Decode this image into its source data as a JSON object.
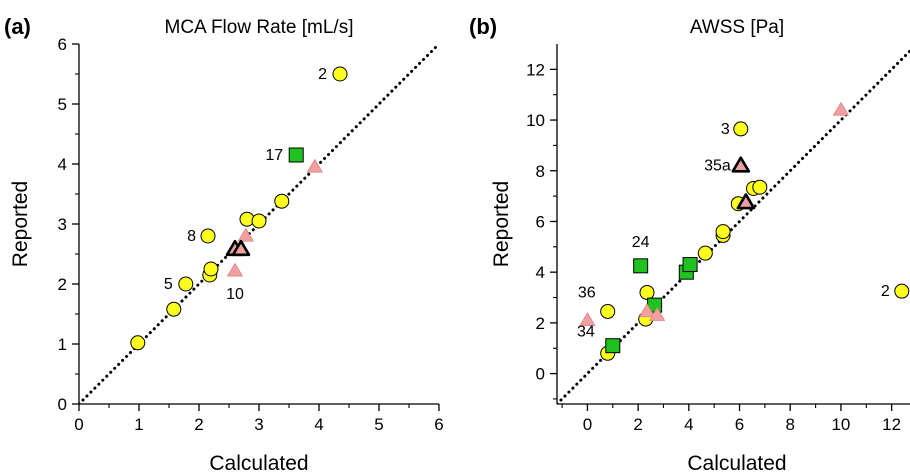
{
  "colors": {
    "circle_fill": "#ffff1e",
    "square_fill": "#1fc21f",
    "triangle_fill": "#f0a0a0",
    "outline": "#000000",
    "identity_line": "#000000"
  },
  "chart_data": [
    {
      "type": "scatter",
      "panel_label": "(a)",
      "title": "MCA Flow Rate [mL/s]",
      "xlabel": "Calculated",
      "ylabel": "Reported",
      "xlim": [
        0,
        6
      ],
      "ylim": [
        0,
        6
      ],
      "xticks": [
        0,
        1,
        2,
        3,
        4,
        5,
        6
      ],
      "yticks": [
        0,
        1,
        2,
        3,
        4,
        5,
        6
      ],
      "identity_line": true,
      "grid": false,
      "points": [
        {
          "x": 0.98,
          "y": 1.02,
          "marker": "circle"
        },
        {
          "x": 1.58,
          "y": 1.58,
          "marker": "circle"
        },
        {
          "x": 1.78,
          "y": 2.0,
          "marker": "circle",
          "label": "5"
        },
        {
          "x": 2.18,
          "y": 2.15,
          "marker": "circle"
        },
        {
          "x": 2.2,
          "y": 2.25,
          "marker": "circle"
        },
        {
          "x": 2.15,
          "y": 2.8,
          "marker": "circle",
          "label": "8"
        },
        {
          "x": 2.8,
          "y": 3.08,
          "marker": "circle"
        },
        {
          "x": 3.0,
          "y": 3.05,
          "marker": "circle"
        },
        {
          "x": 3.38,
          "y": 3.38,
          "marker": "circle"
        },
        {
          "x": 4.35,
          "y": 5.5,
          "marker": "circle",
          "label": "2"
        },
        {
          "x": 3.62,
          "y": 4.15,
          "marker": "square",
          "label": "17"
        },
        {
          "x": 2.6,
          "y": 2.22,
          "marker": "triangle",
          "label": "10"
        },
        {
          "x": 2.78,
          "y": 2.8,
          "marker": "triangle"
        },
        {
          "x": 3.93,
          "y": 3.95,
          "marker": "triangle"
        },
        {
          "x": 2.6,
          "y": 2.58,
          "marker": "triangle",
          "bold": true
        },
        {
          "x": 2.7,
          "y": 2.58,
          "marker": "triangle",
          "bold": true
        }
      ]
    },
    {
      "type": "scatter",
      "panel_label": "(b)",
      "title": "AWSS [Pa]",
      "xlabel": "Calculated",
      "ylabel": "Reported",
      "xlim": [
        -1.2,
        13
      ],
      "ylim": [
        -1.2,
        13
      ],
      "xticks": [
        0,
        2,
        4,
        6,
        8,
        10,
        12
      ],
      "yticks": [
        0,
        2,
        4,
        6,
        8,
        10,
        12
      ],
      "identity_line": true,
      "grid": false,
      "points": [
        {
          "x": 0.8,
          "y": 0.8,
          "marker": "circle"
        },
        {
          "x": 0.8,
          "y": 2.45,
          "marker": "circle",
          "label": "36"
        },
        {
          "x": 2.3,
          "y": 2.15,
          "marker": "circle"
        },
        {
          "x": 2.35,
          "y": 3.2,
          "marker": "circle"
        },
        {
          "x": 4.65,
          "y": 4.75,
          "marker": "circle"
        },
        {
          "x": 5.35,
          "y": 5.45,
          "marker": "circle"
        },
        {
          "x": 5.35,
          "y": 5.6,
          "marker": "circle"
        },
        {
          "x": 5.95,
          "y": 6.7,
          "marker": "circle"
        },
        {
          "x": 6.55,
          "y": 7.3,
          "marker": "circle"
        },
        {
          "x": 6.8,
          "y": 7.35,
          "marker": "circle"
        },
        {
          "x": 6.05,
          "y": 9.65,
          "marker": "circle",
          "label": "3"
        },
        {
          "x": 12.4,
          "y": 3.25,
          "marker": "circle",
          "label": "2"
        },
        {
          "x": 1.0,
          "y": 1.1,
          "marker": "square",
          "label": "34"
        },
        {
          "x": 2.1,
          "y": 4.25,
          "marker": "square",
          "label": "24"
        },
        {
          "x": 2.65,
          "y": 2.7,
          "marker": "square"
        },
        {
          "x": 3.9,
          "y": 4.0,
          "marker": "square"
        },
        {
          "x": 4.05,
          "y": 4.3,
          "marker": "square"
        },
        {
          "x": 0.0,
          "y": 2.1,
          "marker": "triangle"
        },
        {
          "x": 2.35,
          "y": 2.45,
          "marker": "triangle"
        },
        {
          "x": 2.75,
          "y": 2.3,
          "marker": "triangle"
        },
        {
          "x": 10.0,
          "y": 10.4,
          "marker": "triangle"
        },
        {
          "x": 6.05,
          "y": 8.2,
          "marker": "triangle",
          "bold": true,
          "label": "35a"
        },
        {
          "x": 6.25,
          "y": 6.75,
          "marker": "triangle",
          "bold": true
        }
      ]
    }
  ]
}
